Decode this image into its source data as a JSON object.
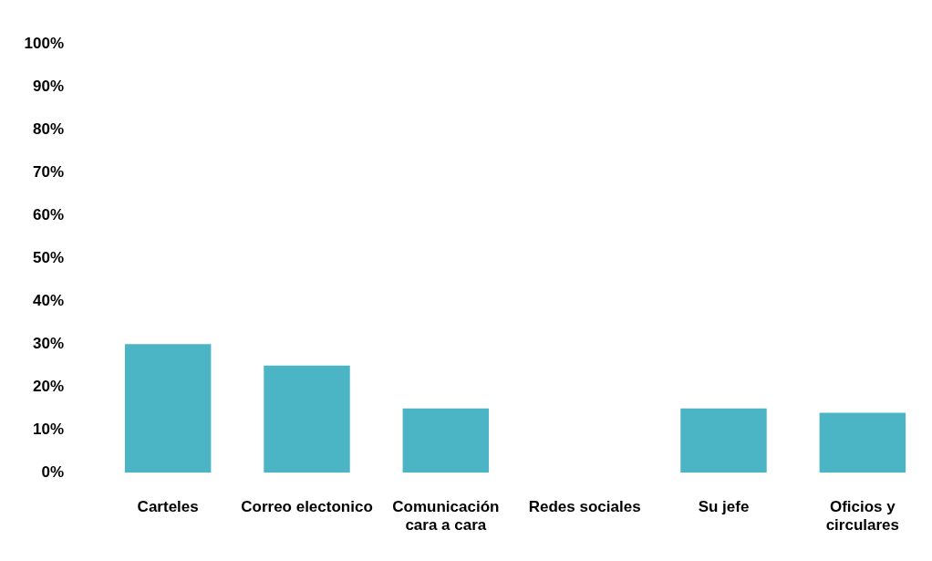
{
  "chart_data": {
    "type": "bar",
    "categories": [
      "Carteles",
      "Correo electonico",
      "Comunicación cara a cara",
      "Redes sociales",
      "Su jefe",
      "Oficios y circulares"
    ],
    "values": [
      30,
      25,
      15,
      0,
      15,
      14
    ],
    "color": "#4bb5c5",
    "ylim": [
      0,
      100
    ],
    "yticks": [
      {
        "value": 0,
        "label": "0%"
      },
      {
        "value": 10,
        "label": "10%"
      },
      {
        "value": 20,
        "label": "20%"
      },
      {
        "value": 30,
        "label": "30%"
      },
      {
        "value": 40,
        "label": "40%"
      },
      {
        "value": 50,
        "label": "50%"
      },
      {
        "value": 60,
        "label": "60%"
      },
      {
        "value": 70,
        "label": "70%"
      },
      {
        "value": 80,
        "label": "80%"
      },
      {
        "value": 90,
        "label": "90%"
      },
      {
        "value": 100,
        "label": "100%"
      }
    ],
    "grid": false,
    "legend": false
  }
}
